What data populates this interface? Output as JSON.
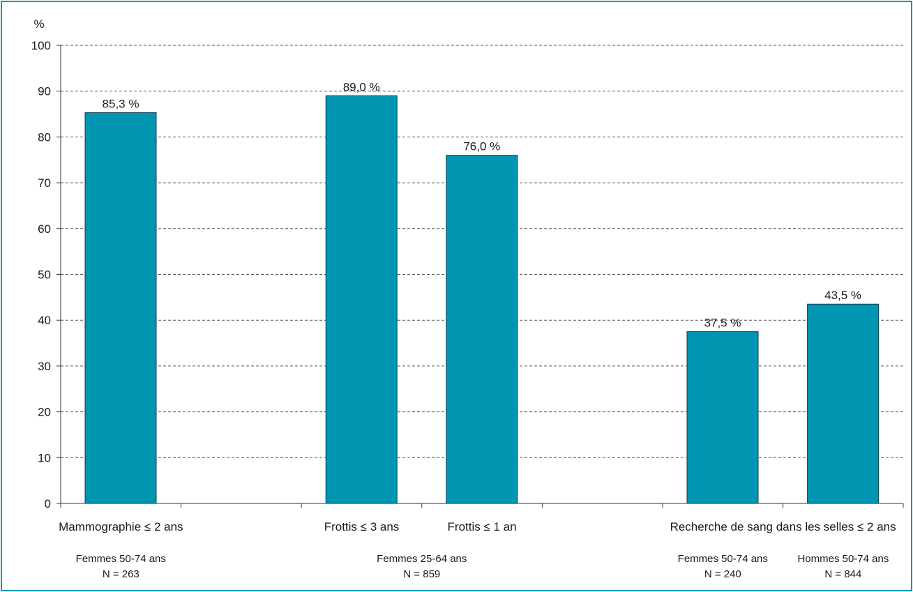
{
  "colors": {
    "bar": "#0096b2",
    "frame": "#1593b0",
    "grid": "#555555"
  },
  "chart_data": {
    "type": "bar",
    "title": "",
    "ylabel": "%",
    "ylim": [
      0,
      100
    ],
    "yticks": [
      0,
      10,
      20,
      30,
      40,
      50,
      60,
      70,
      80,
      90,
      100
    ],
    "grid": true,
    "bars": [
      {
        "slot": 0,
        "value": 85.3,
        "label": "85,3 %"
      },
      {
        "slot": 2,
        "value": 89.0,
        "label": "89,0 %"
      },
      {
        "slot": 3,
        "value": 76.0,
        "label": "76,0 %"
      },
      {
        "slot": 5,
        "value": 37.5,
        "label": "37,5 %"
      },
      {
        "slot": 6,
        "value": 43.5,
        "label": "43,5 %"
      }
    ],
    "categories": [
      {
        "from": 0,
        "to": 0,
        "label": "Mammographie ≤ 2 ans"
      },
      {
        "from": 2,
        "to": 2,
        "label": "Frottis ≤ 3 ans"
      },
      {
        "from": 3,
        "to": 3,
        "label": "Frottis ≤ 1 an"
      },
      {
        "from": 5,
        "to": 6,
        "label": "Recherche de sang dans les selles ≤ 2 ans"
      }
    ],
    "groups": [
      {
        "from": 0,
        "to": 0,
        "line1": "Femmes  50-74 ans",
        "line2": "N = 263"
      },
      {
        "from": 2,
        "to": 3,
        "line1": "Femmes  25-64 ans",
        "line2": "N = 859"
      },
      {
        "from": 5,
        "to": 5,
        "line1": "Femmes  50-74 ans",
        "line2": "N = 240"
      },
      {
        "from": 6,
        "to": 6,
        "line1": "Hommes  50-74 ans",
        "line2": "N = 844"
      }
    ]
  }
}
